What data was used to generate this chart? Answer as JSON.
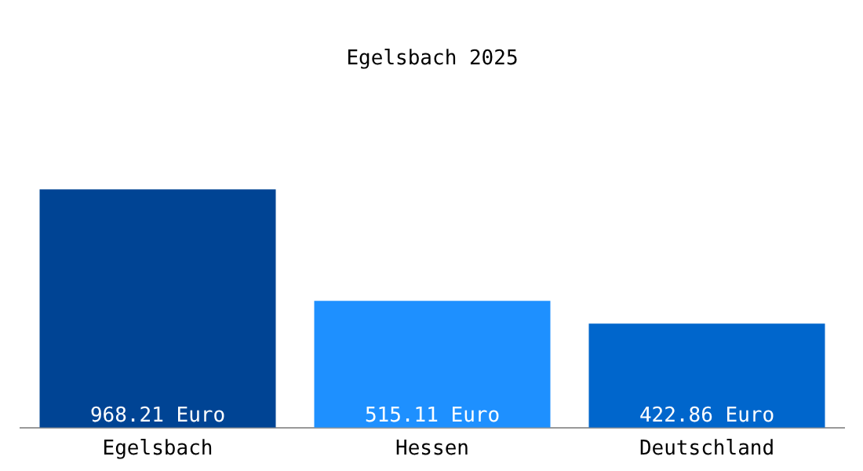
{
  "chart_data": {
    "type": "bar",
    "title": "Egelsbach 2025",
    "categories": [
      "Egelsbach",
      "Hessen",
      "Deutschland"
    ],
    "values": [
      968.21,
      515.11,
      422.86
    ],
    "colors": [
      "#004494",
      "#1e90ff",
      "#0066cc"
    ],
    "value_labels": [
      "968.21 Euro",
      "515.11 Euro",
      "422.86 Euro"
    ],
    "grid": false,
    "legend": false
  }
}
